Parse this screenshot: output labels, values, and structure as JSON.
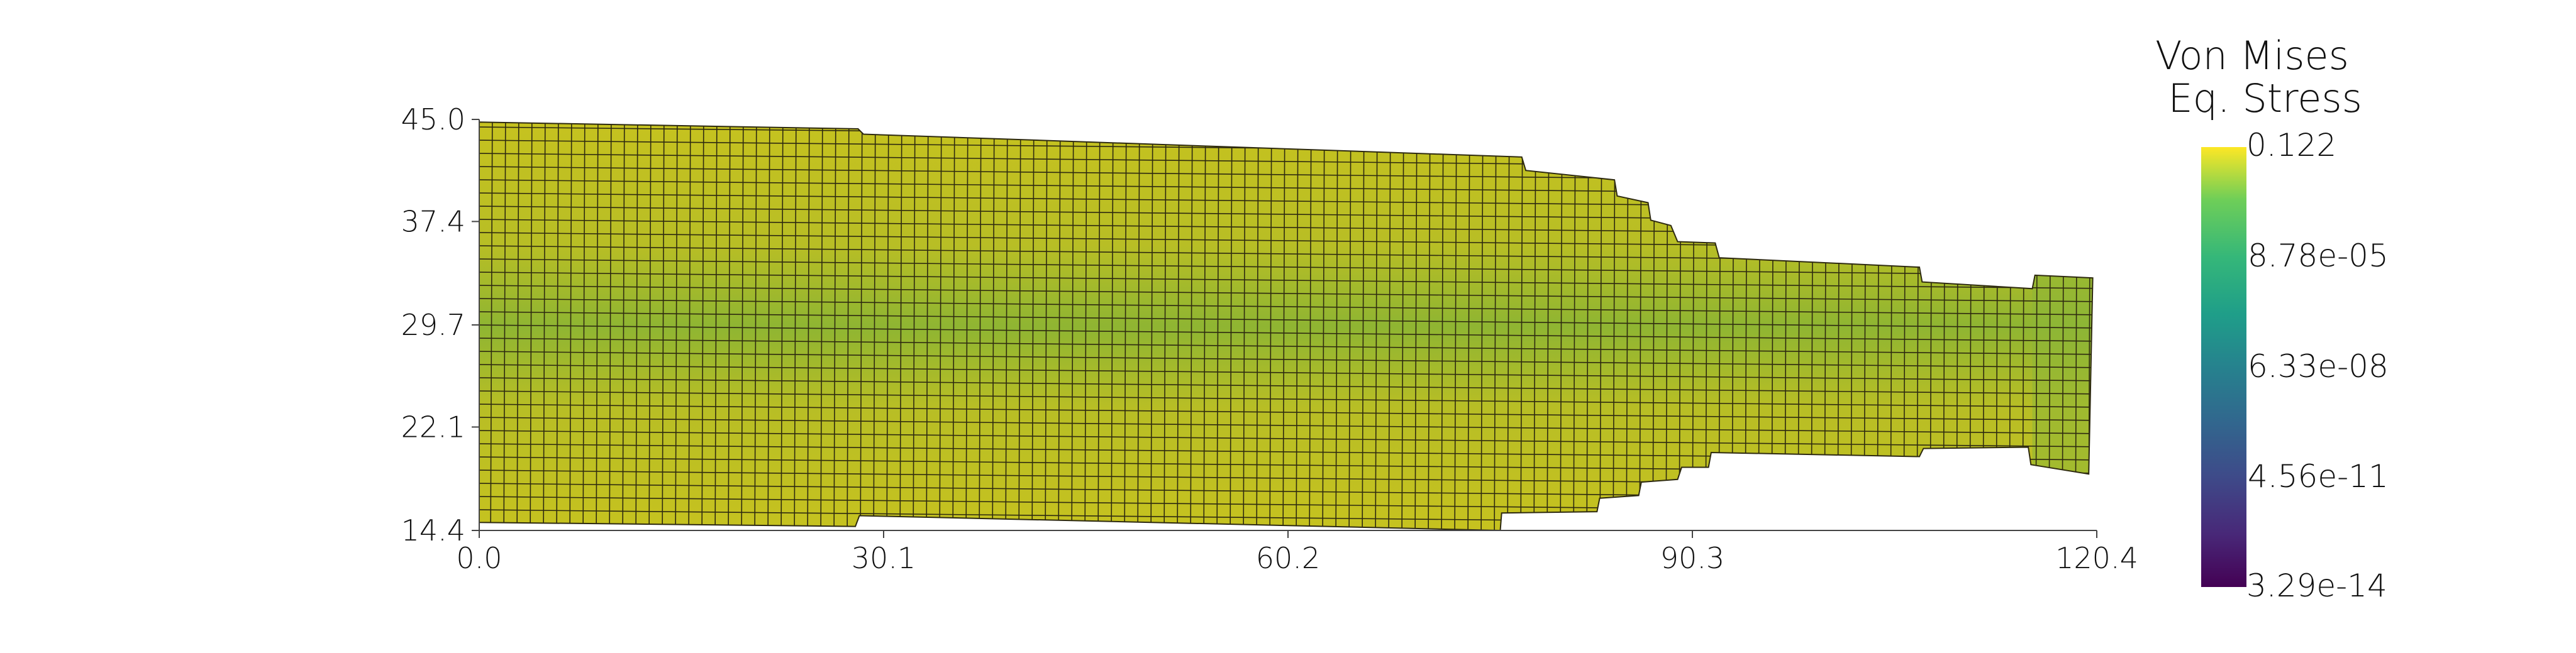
{
  "chart_data": {
    "type": "heatmap",
    "title": "",
    "xlabel": "",
    "ylabel": "",
    "xlim": [
      0.0,
      120.4
    ],
    "ylim": [
      14.4,
      45.0
    ],
    "x_ticks": [
      "0.0",
      "30.1",
      "60.2",
      "90.3",
      "120.4"
    ],
    "y_ticks": [
      "45.0",
      "37.4",
      "29.7",
      "22.1",
      "14.4"
    ],
    "x_tick_values": [
      0.0,
      30.1,
      60.2,
      90.3,
      120.4
    ],
    "y_tick_values": [
      45.0,
      37.4,
      29.7,
      22.1,
      14.4
    ],
    "colorbar": {
      "title_lines": [
        "Von Mises",
        "Eq. Stress"
      ],
      "labels": [
        "0.122",
        "8.78e-05",
        "6.33e-08",
        "4.56e-11",
        "3.29e-14"
      ],
      "colormap": "viridis",
      "scale": "log"
    },
    "mesh_outline": {
      "top": [
        [
          0.0,
          44.8
        ],
        [
          28.2,
          44.3
        ],
        [
          28.6,
          43.9
        ],
        [
          77.6,
          42.2
        ],
        [
          77.9,
          41.2
        ],
        [
          84.5,
          40.5
        ],
        [
          84.7,
          39.3
        ],
        [
          87.0,
          38.8
        ],
        [
          87.2,
          37.5
        ],
        [
          88.7,
          37.1
        ],
        [
          89.2,
          35.9
        ],
        [
          92.0,
          35.8
        ],
        [
          92.3,
          34.7
        ],
        [
          107.2,
          34.0
        ],
        [
          107.4,
          32.9
        ],
        [
          115.6,
          32.4
        ],
        [
          115.8,
          33.4
        ],
        [
          120.1,
          33.2
        ]
      ],
      "bottom": [
        [
          0.0,
          15.0
        ],
        [
          28.0,
          14.7
        ],
        [
          28.3,
          15.5
        ],
        [
          76.0,
          14.4
        ],
        [
          76.1,
          15.7
        ],
        [
          83.2,
          15.8
        ],
        [
          83.4,
          16.8
        ],
        [
          86.3,
          17.0
        ],
        [
          86.5,
          18.0
        ],
        [
          89.2,
          18.2
        ],
        [
          89.5,
          19.1
        ],
        [
          91.5,
          19.1
        ],
        [
          91.7,
          20.2
        ],
        [
          107.2,
          19.9
        ],
        [
          107.5,
          20.5
        ],
        [
          115.3,
          20.6
        ],
        [
          115.5,
          19.3
        ],
        [
          119.8,
          18.6
        ]
      ],
      "right_edge": [
        [
          120.1,
          33.2
        ],
        [
          119.8,
          18.6
        ]
      ]
    },
    "dominant_value": "0.122",
    "colors": {
      "high": "#c4c121",
      "mid": "#9dbb2f",
      "center_band": "#84b333",
      "grid_line": "#2e2a10"
    }
  }
}
